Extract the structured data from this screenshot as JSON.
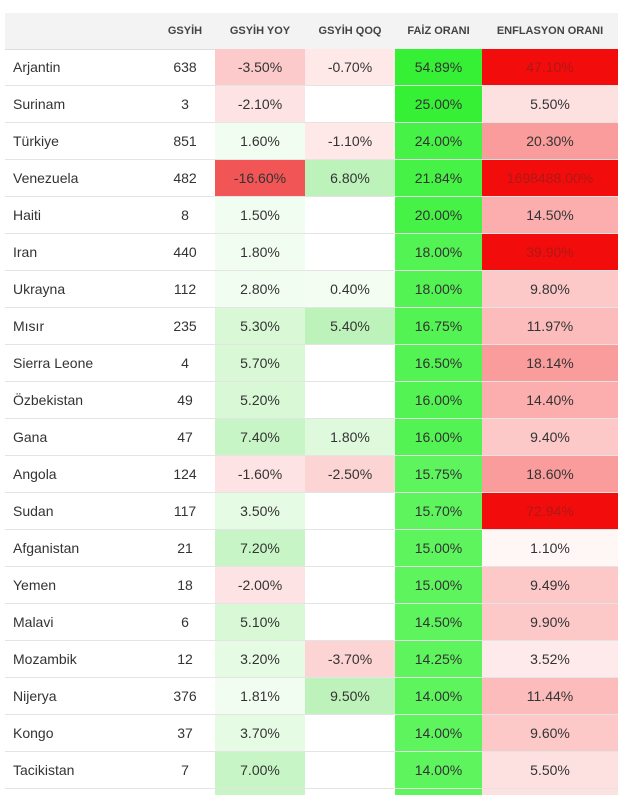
{
  "table": {
    "headers": {
      "country": "",
      "gdp": "GSYİH",
      "gdp_yoy": "GSYİH YOY",
      "gdp_qoq": "GSYİH QOQ",
      "interest_rate": "FAİZ ORANI",
      "inflation_rate": "ENFLASYON ORANI"
    },
    "columns": [
      "country",
      "gdp",
      "gdp_yoy",
      "gdp_qoq",
      "interest_rate",
      "inflation_rate"
    ],
    "rows": [
      {
        "country": "Arjantin",
        "gdp": "638",
        "gdp_yoy": "-3.50%",
        "gdp_qoq": "-0.70%",
        "interest_rate": "54.89%",
        "inflation_rate": "47.10%"
      },
      {
        "country": "Surinam",
        "gdp": "3",
        "gdp_yoy": "-2.10%",
        "gdp_qoq": "",
        "interest_rate": "25.00%",
        "inflation_rate": "5.50%"
      },
      {
        "country": "Türkiye",
        "gdp": "851",
        "gdp_yoy": "1.60%",
        "gdp_qoq": "-1.10%",
        "interest_rate": "24.00%",
        "inflation_rate": "20.30%"
      },
      {
        "country": "Venezuela",
        "gdp": "482",
        "gdp_yoy": "-16.60%",
        "gdp_qoq": "6.80%",
        "interest_rate": "21.84%",
        "inflation_rate": "1698488.00%"
      },
      {
        "country": "Haiti",
        "gdp": "8",
        "gdp_yoy": "1.50%",
        "gdp_qoq": "",
        "interest_rate": "20.00%",
        "inflation_rate": "14.50%"
      },
      {
        "country": "Iran",
        "gdp": "440",
        "gdp_yoy": "1.80%",
        "gdp_qoq": "",
        "interest_rate": "18.00%",
        "inflation_rate": "39.90%"
      },
      {
        "country": "Ukrayna",
        "gdp": "112",
        "gdp_yoy": "2.80%",
        "gdp_qoq": "0.40%",
        "interest_rate": "18.00%",
        "inflation_rate": "9.80%"
      },
      {
        "country": "Mısır",
        "gdp": "235",
        "gdp_yoy": "5.30%",
        "gdp_qoq": "5.40%",
        "interest_rate": "16.75%",
        "inflation_rate": "11.97%"
      },
      {
        "country": "Sierra Leone",
        "gdp": "4",
        "gdp_yoy": "5.70%",
        "gdp_qoq": "",
        "interest_rate": "16.50%",
        "inflation_rate": "18.14%"
      },
      {
        "country": "Özbekistan",
        "gdp": "49",
        "gdp_yoy": "5.20%",
        "gdp_qoq": "",
        "interest_rate": "16.00%",
        "inflation_rate": "14.40%"
      },
      {
        "country": "Gana",
        "gdp": "47",
        "gdp_yoy": "7.40%",
        "gdp_qoq": "1.80%",
        "interest_rate": "16.00%",
        "inflation_rate": "9.40%"
      },
      {
        "country": "Angola",
        "gdp": "124",
        "gdp_yoy": "-1.60%",
        "gdp_qoq": "-2.50%",
        "interest_rate": "15.75%",
        "inflation_rate": "18.60%"
      },
      {
        "country": "Sudan",
        "gdp": "117",
        "gdp_yoy": "3.50%",
        "gdp_qoq": "",
        "interest_rate": "15.70%",
        "inflation_rate": "72.94%"
      },
      {
        "country": "Afganistan",
        "gdp": "21",
        "gdp_yoy": "7.20%",
        "gdp_qoq": "",
        "interest_rate": "15.00%",
        "inflation_rate": "1.10%"
      },
      {
        "country": "Yemen",
        "gdp": "18",
        "gdp_yoy": "-2.00%",
        "gdp_qoq": "",
        "interest_rate": "15.00%",
        "inflation_rate": "9.49%"
      },
      {
        "country": "Malavi",
        "gdp": "6",
        "gdp_yoy": "5.10%",
        "gdp_qoq": "",
        "interest_rate": "14.50%",
        "inflation_rate": "9.90%"
      },
      {
        "country": "Mozambik",
        "gdp": "12",
        "gdp_yoy": "3.20%",
        "gdp_qoq": "-3.70%",
        "interest_rate": "14.25%",
        "inflation_rate": "3.52%"
      },
      {
        "country": "Nijerya",
        "gdp": "376",
        "gdp_yoy": "1.81%",
        "gdp_qoq": "9.50%",
        "interest_rate": "14.00%",
        "inflation_rate": "11.44%"
      },
      {
        "country": "Kongo",
        "gdp": "37",
        "gdp_yoy": "3.70%",
        "gdp_qoq": "",
        "interest_rate": "14.00%",
        "inflation_rate": "9.60%"
      },
      {
        "country": "Tacikistan",
        "gdp": "7",
        "gdp_yoy": "7.00%",
        "gdp_qoq": "",
        "interest_rate": "14.00%",
        "inflation_rate": "5.50%"
      }
    ]
  },
  "colors": {
    "text": "#333333",
    "text_on_strong_red": "#b01818",
    "header_bg": "#f3f3f3",
    "strong_green": "#3df23d",
    "strong_red": "#f20c0c"
  }
}
